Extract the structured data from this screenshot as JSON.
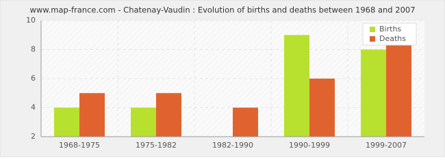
{
  "chart_data": {
    "type": "bar",
    "title": "www.map-france.com - Chatenay-Vaudin : Evolution of births and deaths between 1968 and 2007",
    "categories": [
      "1968-1975",
      "1975-1982",
      "1982-1990",
      "1990-1999",
      "1999-2007"
    ],
    "series": [
      {
        "name": "Births",
        "color": "#b8e02e",
        "values": [
          4,
          4,
          2,
          9,
          8
        ]
      },
      {
        "name": "Deaths",
        "color": "#e0632f",
        "values": [
          5,
          5,
          4,
          6,
          8.5
        ]
      }
    ],
    "ylim": [
      2,
      10
    ],
    "yticks": [
      2,
      4,
      6,
      8,
      10
    ],
    "grid": true,
    "legend": "top-right"
  }
}
